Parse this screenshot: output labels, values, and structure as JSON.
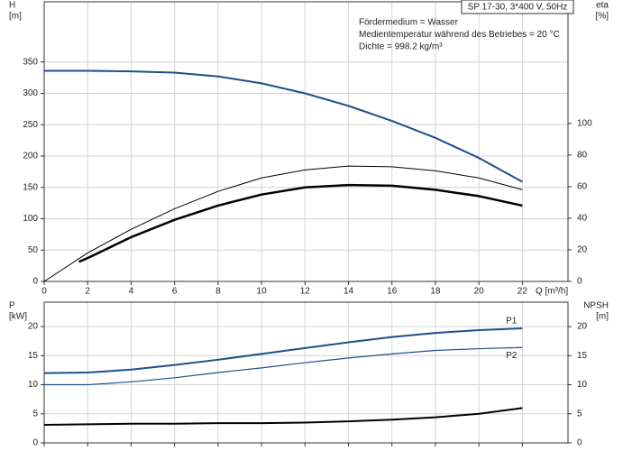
{
  "chart_data": [
    {
      "type": "line",
      "title": "SP 17-30, 3*400 V, 50Hz",
      "annotations": [
        "Fördermedium = Wasser",
        "Medientemperatur während des Betriebes = 20 °C",
        "Dichte = 998.2 kg/m³"
      ],
      "ylabel": "H",
      "yunit": "[m]",
      "y2label": "eta",
      "y2unit": "[%]",
      "xlabel": "Q [m³/h]",
      "xlim": [
        0,
        24.1
      ],
      "xticks": [
        0,
        2,
        4,
        6,
        8,
        10,
        12,
        14,
        16,
        18,
        20,
        22
      ],
      "ylim": [
        0,
        446
      ],
      "yticks": [
        0,
        50,
        100,
        150,
        200,
        250,
        300,
        350
      ],
      "y2lim": [
        0,
        177
      ],
      "y2ticks": [
        0,
        20,
        40,
        60,
        80,
        100
      ],
      "grid": true,
      "series": [
        {
          "color": "#1d4f8c",
          "line_width": 2,
          "x": [
            0,
            2,
            4,
            6,
            8,
            10,
            12,
            14,
            16,
            18,
            20,
            22
          ],
          "values": [
            336,
            336,
            335,
            333,
            327,
            316,
            300,
            280,
            256,
            229,
            197,
            159
          ]
        },
        {
          "color": "#000000",
          "line_width": 1,
          "axis": "y2",
          "x": [
            0,
            2,
            4,
            6,
            8,
            10,
            12,
            14,
            16,
            18,
            20,
            22
          ],
          "values": [
            0,
            18,
            33,
            46,
            57,
            65.5,
            70.6,
            73,
            72.6,
            70,
            65.5,
            58
          ]
        },
        {
          "color": "#000000",
          "line_width": 2.5,
          "axis": "y2",
          "x": [
            1.6,
            2,
            4,
            6,
            8,
            10,
            12,
            14,
            16,
            18,
            20,
            22
          ],
          "values": [
            12.4,
            14.8,
            28,
            39,
            48,
            55,
            59.5,
            61,
            60.6,
            58,
            54,
            48
          ]
        }
      ]
    },
    {
      "type": "line",
      "ylabel": "P",
      "yunit": "[kW]",
      "y2label": "NPSH",
      "y2unit": "[m]",
      "xlim": [
        0,
        24.1
      ],
      "ylim": [
        0,
        24.2
      ],
      "yticks": [
        0,
        5,
        10,
        15,
        20
      ],
      "y2lim": [
        0,
        24.2
      ],
      "y2ticks": [
        0,
        5,
        10,
        15,
        20
      ],
      "grid": true,
      "series": [
        {
          "name": "P1",
          "color": "#1d4f8c",
          "line_width": 2,
          "x": [
            0,
            2,
            4,
            6,
            8,
            10,
            12,
            14,
            16,
            18,
            20,
            22
          ],
          "values": [
            12,
            12.1,
            12.6,
            13.4,
            14.3,
            15.3,
            16.3,
            17.3,
            18.2,
            18.9,
            19.4,
            19.7
          ]
        },
        {
          "name": "P2",
          "color": "#1d4f8c",
          "line_width": 1.2,
          "x": [
            0,
            2,
            4,
            6,
            8,
            10,
            12,
            14,
            16,
            18,
            20,
            22
          ],
          "values": [
            10,
            10,
            10.5,
            11.2,
            12.1,
            12.9,
            13.8,
            14.6,
            15.3,
            15.9,
            16.2,
            16.4
          ]
        },
        {
          "color": "#000000",
          "line_width": 2,
          "axis": "y2",
          "x": [
            0,
            2,
            4,
            6,
            8,
            10,
            12,
            14,
            16,
            18,
            20,
            22
          ],
          "values": [
            3.1,
            3.2,
            3.3,
            3.3,
            3.4,
            3.4,
            3.5,
            3.7,
            4.0,
            4.4,
            5.0,
            6.0
          ]
        }
      ]
    }
  ]
}
